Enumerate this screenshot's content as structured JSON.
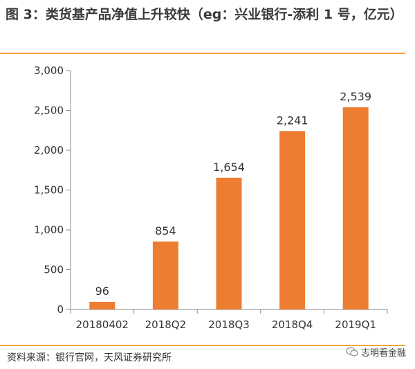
{
  "page": {
    "title": "图 3：类货基产品净值上升较快（eg：兴业银行-添利 1 号，亿元）",
    "source": "资料来源：银行官网，天风证券研究所",
    "watermark": "志明看金融",
    "watermark_icon": "wechat-icon",
    "accent_color": "#ED7D31",
    "rule_color": "#F2A33A"
  },
  "chart_data": {
    "type": "bar",
    "title": "",
    "xlabel": "",
    "ylabel": "",
    "categories": [
      "20180402",
      "2018Q2",
      "2018Q3",
      "2018Q4",
      "2019Q1"
    ],
    "values": [
      96,
      854,
      1654,
      2241,
      2539
    ],
    "data_labels": [
      "96",
      "854",
      "1,654",
      "2,241",
      "2,539"
    ],
    "ylim": [
      0,
      3000
    ],
    "yticks": [
      0,
      500,
      1000,
      1500,
      2000,
      2500,
      3000
    ],
    "ytick_labels": [
      "0",
      "500",
      "1,000",
      "1,500",
      "2,000",
      "2,500",
      "3,000"
    ],
    "grid": false,
    "legend": "none",
    "bar_color": "#ED7D31"
  }
}
